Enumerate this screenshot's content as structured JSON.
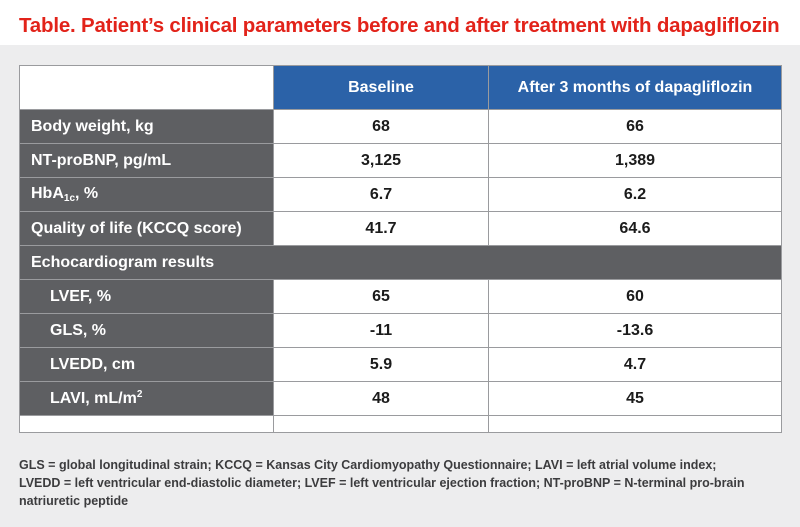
{
  "title": "Table. Patient’s clinical parameters before and after treatment with dapagliflozin",
  "header": {
    "col1": "",
    "col2": "Baseline",
    "col3": "After 3 months of dapagliflozin"
  },
  "rows": [
    {
      "label": "Body weight, kg",
      "baseline": "68",
      "after": "66"
    },
    {
      "label": "NT-proBNP, pg/mL",
      "baseline": "3,125",
      "after": "1,389"
    },
    {
      "label_main": "HbA",
      "label_sub": "1c",
      "label_tail": ", %",
      "baseline": "6.7",
      "after": "6.2"
    },
    {
      "label": "Quality of life (KCCQ score)",
      "baseline": "41.7",
      "after": "64.6"
    }
  ],
  "section": "Echocardiogram results",
  "echo_rows": [
    {
      "label": "LVEF, %",
      "baseline": "65",
      "after": "60"
    },
    {
      "label": "GLS, %",
      "baseline": "-11",
      "after": "-13.6"
    },
    {
      "label": "LVEDD, cm",
      "baseline": "5.9",
      "after": "4.7"
    },
    {
      "label_main": "LAVI, mL/m",
      "label_sup": "2",
      "baseline": "48",
      "after": "45"
    }
  ],
  "footnote": "GLS = global longitudinal strain; KCCQ = Kansas City Cardiomyopathy Questionnaire; LAVI = left atrial volume index; LVEDD = left ventricular end-diastolic diameter; LVEF = left ventricular ejection fraction; NT-proBNP = N-terminal pro-brain natriuretic peptide",
  "colors": {
    "title": "#e2231a",
    "header_bg": "#2b62a8",
    "label_bg": "#5e5f62",
    "panel_bg": "#ededee"
  }
}
